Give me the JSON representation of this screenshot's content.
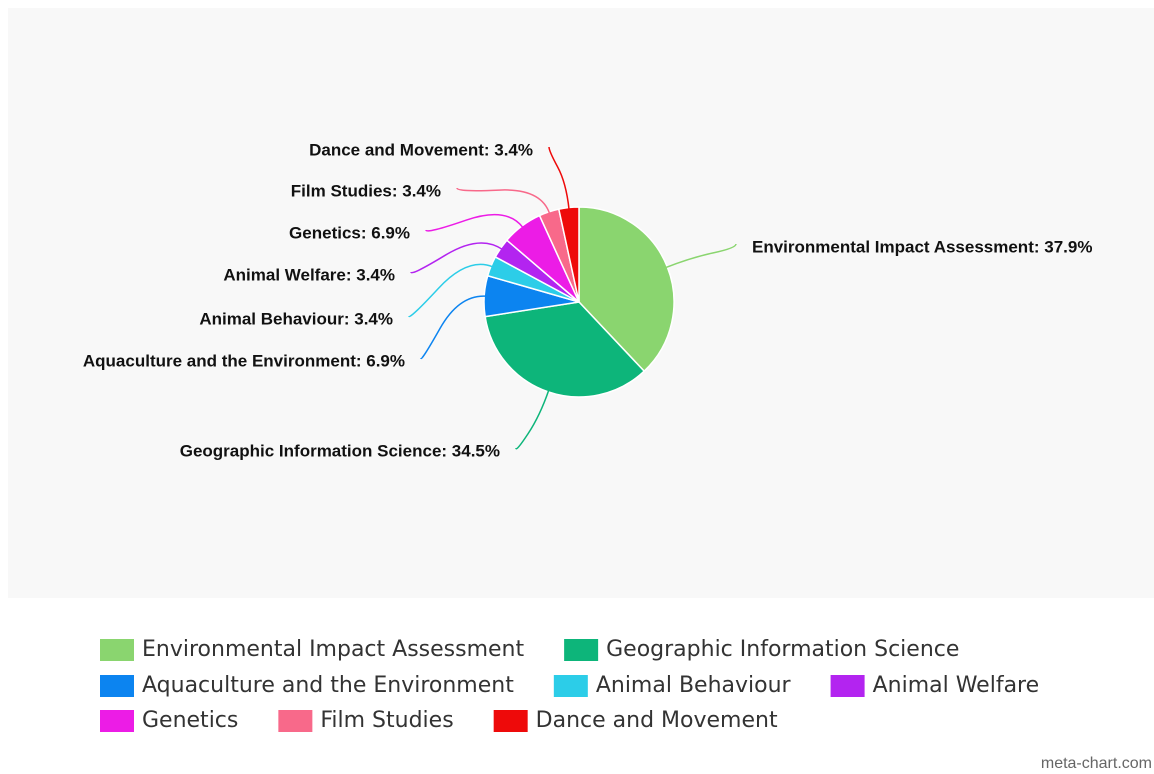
{
  "chart_data": {
    "type": "pie",
    "categories": [
      "Environmental Impact Assessment",
      "Geographic Information Science",
      "Aquaculture and the Environment",
      "Animal Behaviour",
      "Animal Welfare",
      "Genetics",
      "Film Studies",
      "Dance and Movement"
    ],
    "values": [
      37.9,
      34.5,
      6.9,
      3.4,
      3.4,
      6.9,
      3.4,
      3.4
    ],
    "value_labels": [
      "Environmental Impact Assessment: 37.9%",
      "Geographic Information Science: 34.5%",
      "Aquaculture and the Environment: 6.9%",
      "Animal Behaviour: 3.4%",
      "Animal Welfare: 3.4%",
      "Genetics: 6.9%",
      "Film Studies: 3.4%",
      "Dance and Movement: 3.4%"
    ],
    "colors": [
      "#8ad56f",
      "#0db57a",
      "#0c84f0",
      "#2ccde8",
      "#b324f0",
      "#ec1ce6",
      "#f8698a",
      "#ee0a0a"
    ],
    "legend": "bottom",
    "watermark": "meta-chart.com"
  }
}
